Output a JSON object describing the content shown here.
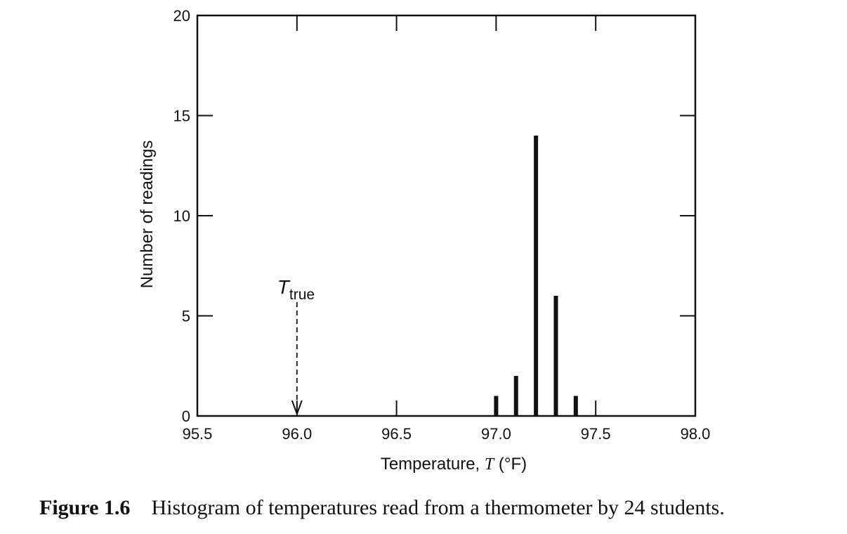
{
  "chart_data": {
    "type": "bar",
    "xlabel_prefix": "Temperature, ",
    "xlabel_var": "T",
    "xlabel_unit": " (°F)",
    "ylabel": "Number of readings",
    "xlim": [
      95.5,
      98.0
    ],
    "ylim": [
      0,
      20
    ],
    "xticks": [
      95.5,
      96.0,
      96.5,
      97.0,
      97.5,
      98.0
    ],
    "xtick_labels": [
      "95.5",
      "96.0",
      "96.5",
      "97.0",
      "97.5",
      "98.0"
    ],
    "yticks": [
      0,
      5,
      10,
      15,
      20
    ],
    "ytick_labels": [
      "0",
      "5",
      "10",
      "15",
      "20"
    ],
    "x": [
      97.0,
      97.1,
      97.2,
      97.3,
      97.4
    ],
    "values": [
      1,
      2,
      14,
      6,
      1
    ],
    "annotation": {
      "x": 96.0,
      "label_main": "T",
      "label_sub": "true"
    },
    "grid": false,
    "legend": "none"
  },
  "caption": {
    "label": "Figure 1.6",
    "text": "Histogram of temperatures read from a thermometer by 24 students."
  }
}
